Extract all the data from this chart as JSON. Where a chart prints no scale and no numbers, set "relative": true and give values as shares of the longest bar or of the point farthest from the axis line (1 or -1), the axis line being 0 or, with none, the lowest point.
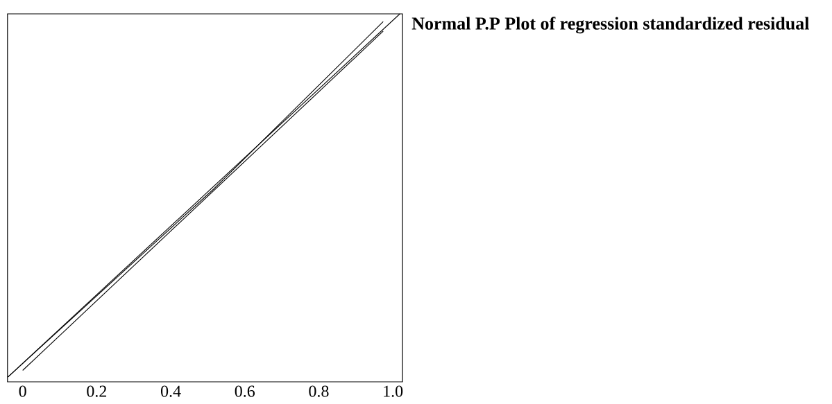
{
  "chart_data": {
    "type": "line",
    "title": "Normal P.P Plot of regression standardized residual",
    "relative": true,
    "xlim": [
      -0.041,
      1.026
    ],
    "xticks": [
      0,
      0.2,
      0.4,
      0.6,
      0.8,
      {
        "value": 1,
        "label": "1.0"
      }
    ],
    "grid": false,
    "marker": "none",
    "line_style": "solid",
    "series": [
      {
        "color": "#000000",
        "x": [
          -0.04,
          1.019
        ],
        "values": [
          0.013,
          1.0
        ]
      },
      {
        "color": "#000000",
        "x": [
          -0.04,
          0.516,
          0.974
        ],
        "values": [
          0.013,
          0.524,
          0.979
        ]
      },
      {
        "color": "#000000",
        "x": [
          0.0,
          0.974
        ],
        "values": [
          0.031,
          0.953
        ]
      }
    ]
  }
}
